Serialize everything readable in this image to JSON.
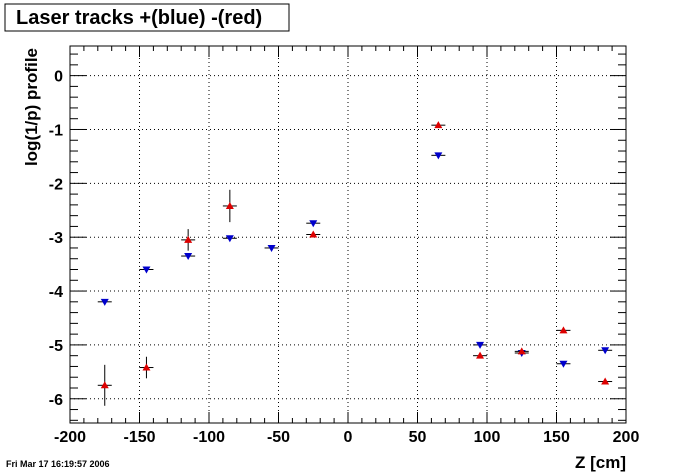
{
  "title": "Laser tracks +(blue) -(red)",
  "timestamp": "Fri Mar 17 16:19:57 2006",
  "chart_data": {
    "type": "scatter",
    "title": "Laser tracks +(blue) -(red)",
    "xlabel": "Z [cm]",
    "ylabel": "log(1/p) profile",
    "xlim": [
      -200,
      200
    ],
    "ylim": [
      -6.45,
      0.55
    ],
    "xticks": [
      -200,
      -150,
      -100,
      -50,
      0,
      50,
      100,
      150,
      200
    ],
    "xtick_labels": [
      "-200",
      "-150",
      "-100",
      "-50",
      "0",
      "50",
      "100",
      "150",
      "200"
    ],
    "yticks": [
      0,
      -1,
      -2,
      -3,
      -4,
      -5,
      -6
    ],
    "ytick_labels": [
      "0",
      "-1",
      "-2",
      "-3",
      "-4",
      "-5",
      "-6"
    ],
    "grid": true,
    "series": [
      {
        "color": "#0000cc",
        "marker": "triangle-down",
        "points": [
          {
            "x": -175,
            "y": -4.2,
            "yerr": 0.03
          },
          {
            "x": -145,
            "y": -3.6,
            "yerr": 0.03
          },
          {
            "x": -115,
            "y": -3.35,
            "yerr": 0.05
          },
          {
            "x": -85,
            "y": -3.02,
            "yerr": 0.03
          },
          {
            "x": -55,
            "y": -3.2,
            "yerr": 0.03
          },
          {
            "x": -25,
            "y": -2.74,
            "yerr": 0.03
          },
          {
            "x": 65,
            "y": -1.48,
            "yerr": 0.03
          },
          {
            "x": 95,
            "y": -5.0,
            "yerr": 0.03
          },
          {
            "x": 125,
            "y": -5.15,
            "yerr": 0.05
          },
          {
            "x": 155,
            "y": -5.35,
            "yerr": 0.03
          },
          {
            "x": 185,
            "y": -5.1,
            "yerr": 0.03
          }
        ]
      },
      {
        "color": "#dd0000",
        "marker": "triangle-up",
        "points": [
          {
            "x": -175,
            "y": -5.75,
            "yerr": 0.38
          },
          {
            "x": -145,
            "y": -5.42,
            "yerr": 0.2
          },
          {
            "x": -115,
            "y": -3.05,
            "yerr": 0.2
          },
          {
            "x": -85,
            "y": -2.42,
            "yerr": 0.3
          },
          {
            "x": -25,
            "y": -2.95,
            "yerr": 0.05
          },
          {
            "x": 65,
            "y": -0.92,
            "yerr": 0.03
          },
          {
            "x": 95,
            "y": -5.2,
            "yerr": 0.03
          },
          {
            "x": 125,
            "y": -5.12,
            "yerr": 0.04
          },
          {
            "x": 155,
            "y": -4.73,
            "yerr": 0.03
          },
          {
            "x": 185,
            "y": -5.68,
            "yerr": 0.03
          }
        ]
      }
    ]
  }
}
